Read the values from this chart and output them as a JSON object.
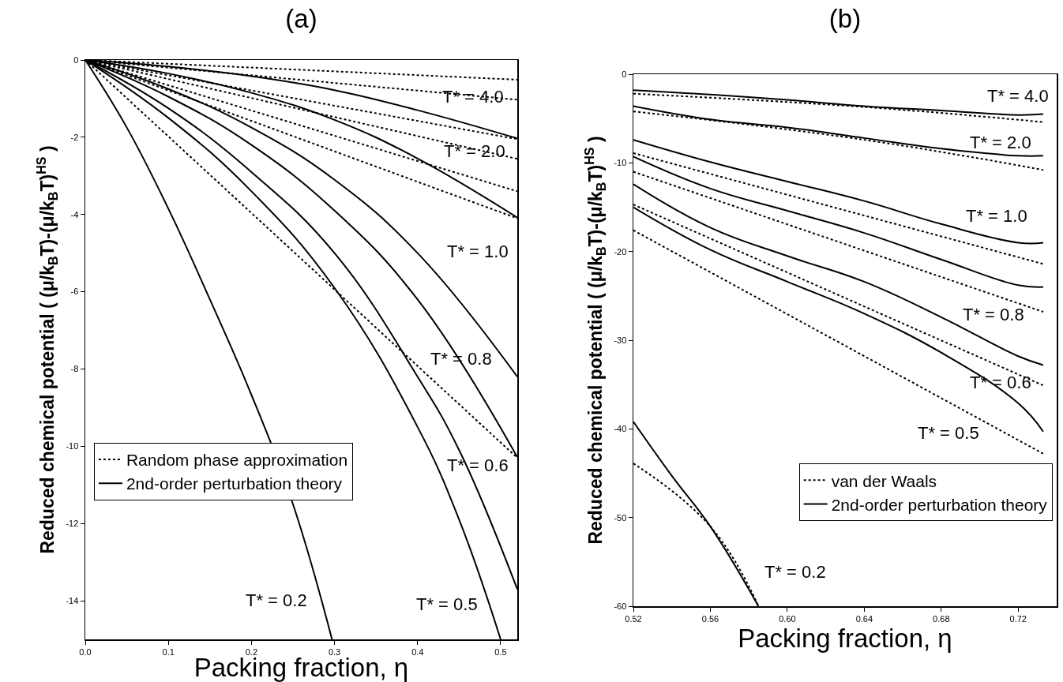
{
  "chart_data": [
    {
      "type": "line",
      "title": "(a)",
      "xlabel": "Packing fraction, η",
      "ylabel": "Reduced chemical potential ( (μ/k$_{B}$T)-(μ/k$_{B}$T)$^{HS}$ )",
      "xlim": [
        0,
        0.52
      ],
      "xticks": [
        {
          "value": 0,
          "label": "0.0"
        },
        0.1,
        0.2,
        0.3,
        0.4,
        0.5
      ],
      "ylim": [
        -15,
        0
      ],
      "yticks": [
        0,
        -2,
        -4,
        -6,
        -8,
        -10,
        -12,
        -14
      ],
      "grid": false,
      "legend": "bottom left",
      "marker": "none",
      "series": [
        {
          "name": "Random phase approximation",
          "color": "#000000",
          "line_style": "dotted",
          "x": [
            0,
            0.52
          ],
          "values": [
            0,
            -0.51
          ]
        },
        {
          "color": "#000000",
          "line_style": "dotted",
          "x": [
            0,
            0.52
          ],
          "values": [
            0,
            -1.03
          ]
        },
        {
          "color": "#000000",
          "line_style": "dotted",
          "x": [
            0,
            0.52
          ],
          "values": [
            0,
            -2.05
          ]
        },
        {
          "color": "#000000",
          "line_style": "dotted",
          "x": [
            0,
            0.52
          ],
          "values": [
            0,
            -2.56
          ]
        },
        {
          "color": "#000000",
          "line_style": "dotted",
          "x": [
            0,
            0.52
          ],
          "values": [
            0,
            -3.4
          ]
        },
        {
          "color": "#000000",
          "line_style": "dotted",
          "x": [
            0,
            0.52
          ],
          "values": [
            0,
            -4.1
          ]
        },
        {
          "color": "#000000",
          "line_style": "dotted",
          "x": [
            0,
            0.52
          ],
          "values": [
            0,
            -10.3
          ]
        },
        {
          "name": "2nd-order perturbation theory",
          "color": "#000000",
          "line_style": "solid",
          "x": [
            0,
            0.1,
            0.2,
            0.3,
            0.4,
            0.52
          ],
          "values": [
            0,
            -0.17,
            -0.42,
            -0.78,
            -1.3,
            -2.03
          ]
        },
        {
          "color": "#000000",
          "line_style": "solid",
          "x": [
            0,
            0.1,
            0.2,
            0.3,
            0.4,
            0.52
          ],
          "values": [
            0,
            -0.35,
            -0.85,
            -1.55,
            -2.55,
            -4.08
          ]
        },
        {
          "color": "#000000",
          "line_style": "solid",
          "x": [
            0,
            0.1,
            0.2,
            0.3,
            0.4,
            0.52
          ],
          "values": [
            0,
            -0.75,
            -1.75,
            -3.1,
            -5.0,
            -8.2
          ]
        },
        {
          "color": "#000000",
          "line_style": "solid",
          "x": [
            0,
            0.1,
            0.2,
            0.3,
            0.4,
            0.52
          ],
          "values": [
            0,
            -0.95,
            -2.2,
            -3.9,
            -6.2,
            -10.28
          ]
        },
        {
          "color": "#000000",
          "line_style": "solid",
          "x": [
            0,
            0.1,
            0.2,
            0.3,
            0.4,
            0.45,
            0.52
          ],
          "values": [
            0,
            -1.25,
            -2.9,
            -5.0,
            -8.2,
            -10.1,
            -13.7
          ]
        },
        {
          "color": "#000000",
          "line_style": "solid",
          "x": [
            0,
            0.1,
            0.2,
            0.3,
            0.4,
            0.45,
            0.5
          ],
          "values": [
            0,
            -1.5,
            -3.4,
            -5.9,
            -9.5,
            -11.9,
            -15
          ]
        },
        {
          "color": "#000000",
          "line_style": "solid",
          "x": [
            0,
            0.05,
            0.1,
            0.15,
            0.2,
            0.25,
            0.297
          ],
          "values": [
            0,
            -1.75,
            -3.85,
            -6.2,
            -8.67,
            -11.5,
            -15
          ]
        }
      ],
      "annotations": [
        "T* = 4.0",
        "T* = 2.0",
        "T* = 1.0",
        "T* = 0.8",
        "T* = 0.6",
        "T* = 0.5",
        "T* = 0.2"
      ]
    },
    {
      "type": "line",
      "title": "(b)",
      "xlabel": "Packing fraction, η",
      "ylabel": "Reduced chemical potential ( (μ/k$_{B}$T)-(μ/k$_{B}$T)$^{HS}$ )",
      "xlim": [
        0.52,
        0.74
      ],
      "xticks": [
        0.52,
        0.56,
        {
          "value": 0.6,
          "label": "0.60"
        },
        0.64,
        0.68,
        0.72
      ],
      "ylim": [
        -60,
        0
      ],
      "yticks": [
        0,
        -10,
        -20,
        -30,
        -40,
        -50,
        -60
      ],
      "grid": false,
      "legend": "bottom right",
      "marker": "none",
      "series": [
        {
          "name": "van der Waals",
          "color": "#000000",
          "line_style": "dotted",
          "x": [
            0.52,
            0.64,
            0.733
          ],
          "values": [
            -2.2,
            -3.7,
            -5.4
          ]
        },
        {
          "color": "#000000",
          "line_style": "dotted",
          "x": [
            0.52,
            0.64,
            0.733
          ],
          "values": [
            -4.2,
            -7.4,
            -10.8
          ]
        },
        {
          "color": "#000000",
          "line_style": "dotted",
          "x": [
            0.52,
            0.733
          ],
          "values": [
            -8.9,
            -21.4
          ]
        },
        {
          "color": "#000000",
          "line_style": "dotted",
          "x": [
            0.52,
            0.733
          ],
          "values": [
            -11.0,
            -26.8
          ]
        },
        {
          "color": "#000000",
          "line_style": "dotted",
          "x": [
            0.52,
            0.733
          ],
          "values": [
            -14.7,
            -35.1
          ]
        },
        {
          "color": "#000000",
          "line_style": "dotted",
          "x": [
            0.52,
            0.733
          ],
          "values": [
            -17.6,
            -42.8
          ]
        },
        {
          "color": "#000000",
          "line_style": "dotted",
          "x": [
            0.52,
            0.56,
            0.585
          ],
          "values": [
            -43.9,
            -51.0,
            -60
          ]
        },
        {
          "name": "2nd-order perturbation theory",
          "color": "#000000",
          "line_style": "solid",
          "x": [
            0.52,
            0.56,
            0.6,
            0.64,
            0.68,
            0.72,
            0.733
          ],
          "values": [
            -1.8,
            -2.3,
            -2.9,
            -3.6,
            -4.1,
            -4.6,
            -4.5
          ]
        },
        {
          "color": "#000000",
          "line_style": "solid",
          "x": [
            0.52,
            0.56,
            0.6,
            0.64,
            0.68,
            0.72,
            0.733
          ],
          "values": [
            -3.6,
            -5.1,
            -6.0,
            -7.2,
            -8.4,
            -9.2,
            -9.2
          ]
        },
        {
          "color": "#000000",
          "line_style": "solid",
          "x": [
            0.52,
            0.56,
            0.6,
            0.64,
            0.68,
            0.72,
            0.733
          ],
          "values": [
            -7.4,
            -9.9,
            -12.1,
            -14.3,
            -16.9,
            -19.0,
            -19.0
          ]
        },
        {
          "color": "#000000",
          "line_style": "solid",
          "x": [
            0.52,
            0.56,
            0.6,
            0.64,
            0.68,
            0.72,
            0.733
          ],
          "values": [
            -9.3,
            -12.9,
            -15.4,
            -17.9,
            -20.9,
            -23.8,
            -24.0
          ]
        },
        {
          "color": "#000000",
          "line_style": "solid",
          "x": [
            0.52,
            0.56,
            0.6,
            0.64,
            0.68,
            0.72,
            0.733
          ],
          "values": [
            -12.4,
            -17.3,
            -20.5,
            -23.4,
            -27.4,
            -31.8,
            -32.8
          ]
        },
        {
          "color": "#000000",
          "line_style": "solid",
          "x": [
            0.52,
            0.56,
            0.6,
            0.64,
            0.68,
            0.72,
            0.733
          ],
          "values": [
            -15.0,
            -19.8,
            -23.4,
            -27.0,
            -31.4,
            -37.1,
            -40.3
          ]
        },
        {
          "color": "#000000",
          "line_style": "solid",
          "x": [
            0.52,
            0.54,
            0.56,
            0.585
          ],
          "values": [
            -39.2,
            -45.3,
            -51.0,
            -60
          ]
        }
      ],
      "annotations": [
        "T* = 4.0",
        "T* = 2.0",
        "T* = 1.0",
        "T* = 0.8",
        "T* = 0.6",
        "T* = 0.5",
        "T* = 0.2"
      ]
    }
  ]
}
